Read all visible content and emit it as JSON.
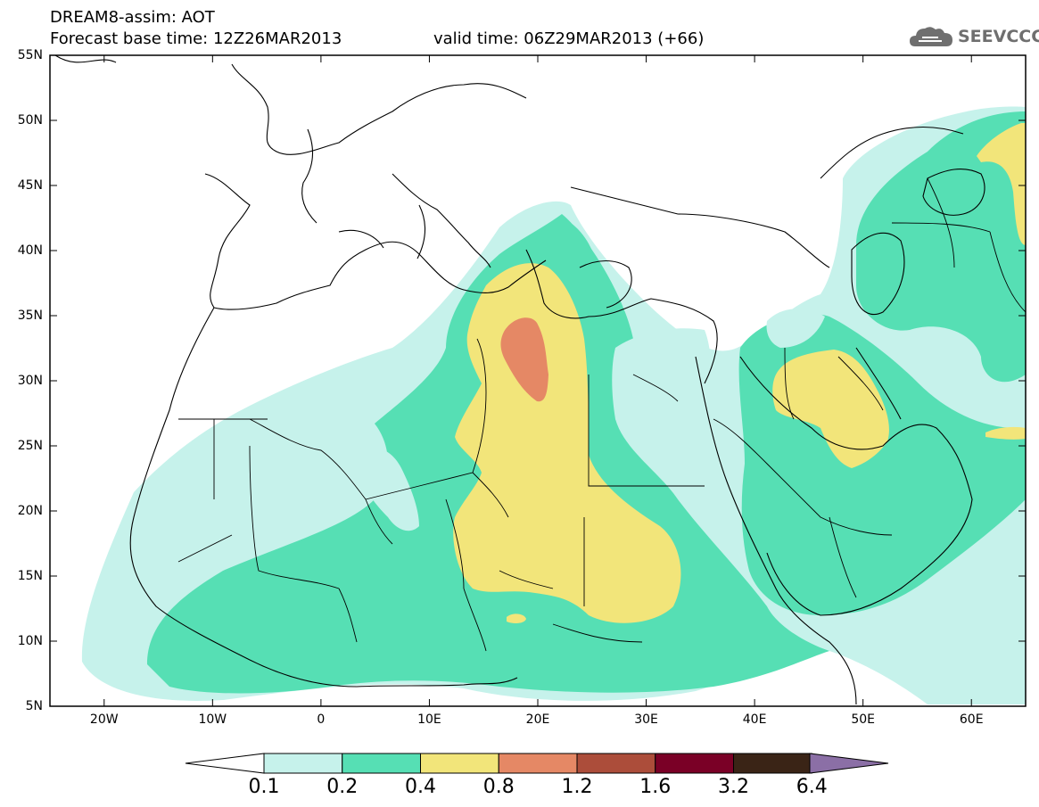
{
  "header": {
    "line1": "DREAM8-assim: AOT",
    "line2": "Forecast base time: 12Z26MAR2013",
    "valid": "valid time: 06Z29MAR2013 (+66)"
  },
  "logo": {
    "text": "SEEVCCC",
    "icon": "cloud-logo-icon",
    "color": "#6f6f6f"
  },
  "map": {
    "projection": "lat-lon",
    "lon_range": [
      -25,
      65
    ],
    "lat_range": [
      5,
      55
    ],
    "lat_labels": [
      "55N",
      "50N",
      "45N",
      "40N",
      "35N",
      "30N",
      "25N",
      "20N",
      "15N",
      "10N",
      "5N"
    ],
    "lon_labels": [
      "20W",
      "10W",
      "0",
      "10E",
      "20E",
      "30E",
      "40E",
      "50E",
      "60E"
    ],
    "field": "Aerosol Optical Thickness",
    "features": [
      {
        "level": "0.8-1.2",
        "region": "Libya / Gulf of Sirte",
        "center": [
          19,
          32.5
        ]
      },
      {
        "level": "0.4-0.8",
        "region": "Libya / Chad / Niger / Sudan",
        "center": [
          21,
          22
        ]
      },
      {
        "level": "0.4-0.8",
        "region": "Iraq / Kuwait",
        "center": [
          47.5,
          28.5
        ]
      },
      {
        "level": "0.4-0.8",
        "region": "Caspian Sea",
        "center": [
          62,
          46
        ]
      }
    ]
  },
  "colorbar": {
    "labels": [
      "0.1",
      "0.2",
      "0.4",
      "0.8",
      "1.2",
      "1.6",
      "3.2",
      "6.4"
    ],
    "colors": [
      "#ffffff",
      "#c6f2eb",
      "#56dfb4",
      "#f2e57a",
      "#e58865",
      "#ac4d3a",
      "#7a0026",
      "#3a2416",
      "#8b6fa6"
    ]
  }
}
